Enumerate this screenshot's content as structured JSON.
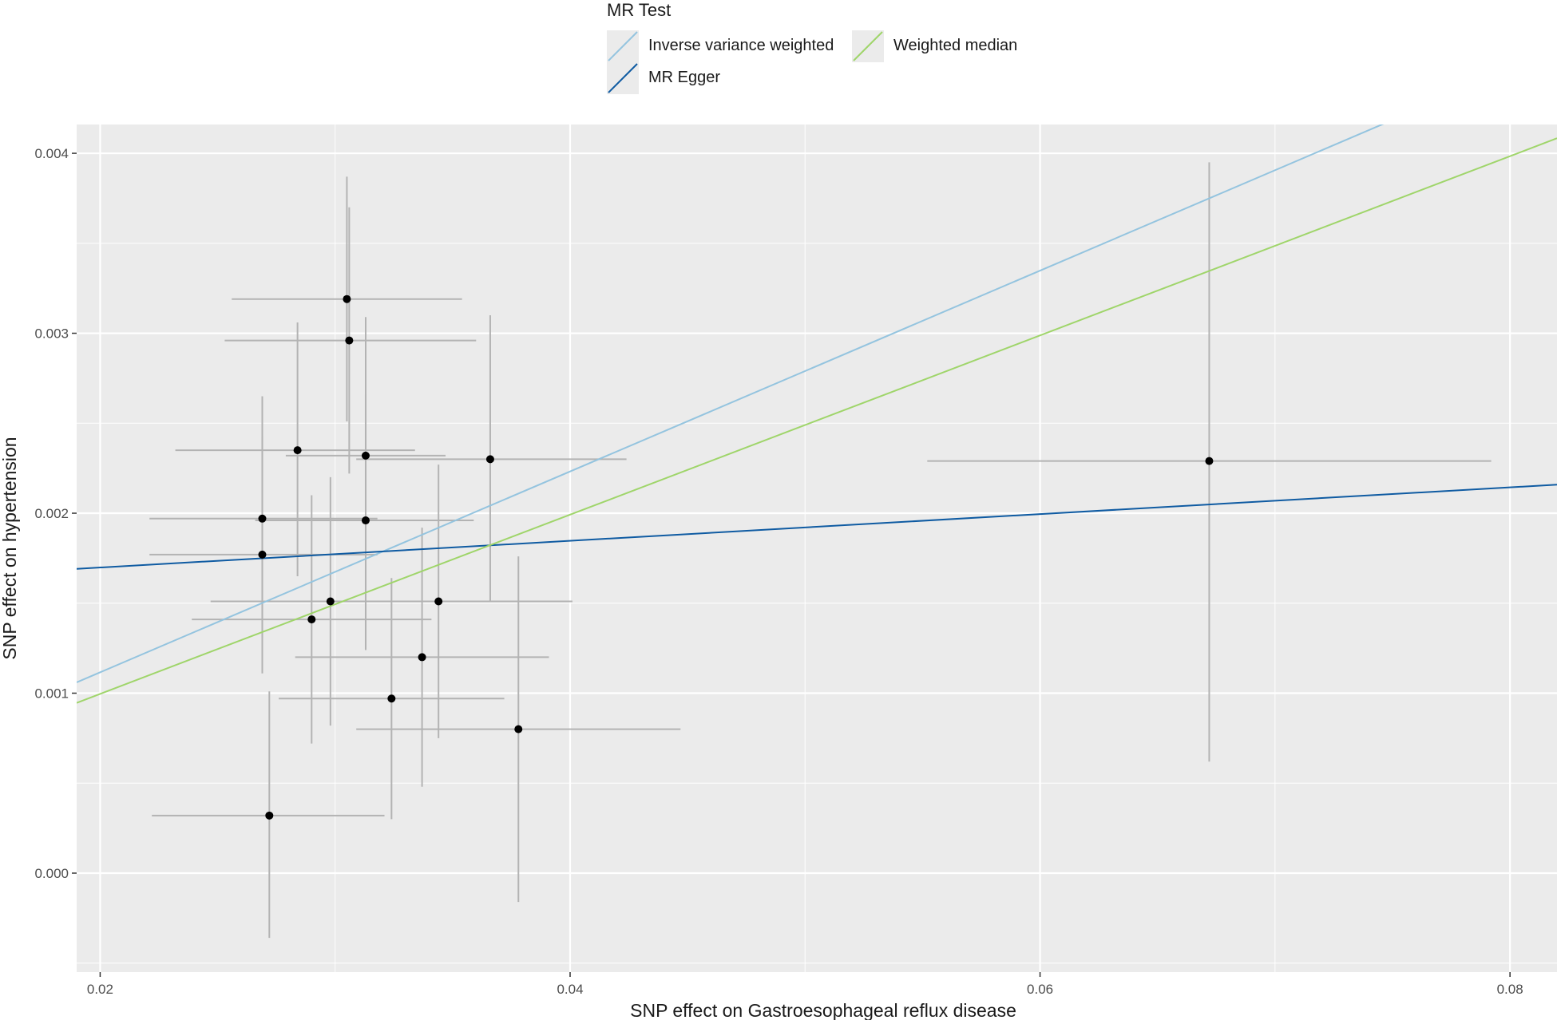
{
  "chart_data": {
    "type": "scatter",
    "xlabel": "SNP effect on Gastroesophageal reflux disease",
    "ylabel": "SNP effect on  hypertension",
    "xlim": [
      0.019,
      0.082
    ],
    "ylim": [
      -0.00055,
      0.00416
    ],
    "x_ticks": [
      0.02,
      0.04,
      0.06,
      0.08
    ],
    "x_tick_labels": [
      "0.02",
      "0.04",
      "0.06",
      "0.08"
    ],
    "y_ticks": [
      0.0,
      0.001,
      0.002,
      0.003,
      0.004
    ],
    "y_tick_labels": [
      "0.000",
      "0.001",
      "0.002",
      "0.003",
      "0.004"
    ],
    "grid": true,
    "legend_title": "MR Test",
    "legend_position": "top",
    "points": [
      {
        "x": 0.0305,
        "y": 0.00319,
        "x_lo": 0.0256,
        "x_hi": 0.0354,
        "y_lo": 0.00251,
        "y_hi": 0.00387
      },
      {
        "x": 0.0306,
        "y": 0.00296,
        "x_lo": 0.0253,
        "x_hi": 0.036,
        "y_lo": 0.00222,
        "y_hi": 0.0037
      },
      {
        "x": 0.0284,
        "y": 0.00235,
        "x_lo": 0.0232,
        "x_hi": 0.0334,
        "y_lo": 0.00165,
        "y_hi": 0.00306
      },
      {
        "x": 0.0313,
        "y": 0.00232,
        "x_lo": 0.0279,
        "x_hi": 0.0347,
        "y_lo": 0.00124,
        "y_hi": 0.00309
      },
      {
        "x": 0.0366,
        "y": 0.0023,
        "x_lo": 0.0309,
        "x_hi": 0.0424,
        "y_lo": 0.00151,
        "y_hi": 0.0031
      },
      {
        "x": 0.0269,
        "y": 0.00197,
        "x_lo": 0.0221,
        "x_hi": 0.0318,
        "y_lo": 0.00131,
        "y_hi": 0.00265
      },
      {
        "x": 0.0313,
        "y": 0.00196,
        "x_lo": 0.0266,
        "x_hi": 0.0359,
        "y_lo": 0.00124,
        "y_hi": 0.00266
      },
      {
        "x": 0.0269,
        "y": 0.00177,
        "x_lo": 0.0221,
        "x_hi": 0.0318,
        "y_lo": 0.00111,
        "y_hi": 0.00243
      },
      {
        "x": 0.0298,
        "y": 0.00151,
        "x_lo": 0.0247,
        "x_hi": 0.035,
        "y_lo": 0.00082,
        "y_hi": 0.0022
      },
      {
        "x": 0.0344,
        "y": 0.00151,
        "x_lo": 0.0287,
        "x_hi": 0.0401,
        "y_lo": 0.00075,
        "y_hi": 0.00227
      },
      {
        "x": 0.029,
        "y": 0.00141,
        "x_lo": 0.0239,
        "x_hi": 0.0341,
        "y_lo": 0.00072,
        "y_hi": 0.0021
      },
      {
        "x": 0.0337,
        "y": 0.0012,
        "x_lo": 0.0283,
        "x_hi": 0.0391,
        "y_lo": 0.00048,
        "y_hi": 0.00192
      },
      {
        "x": 0.0324,
        "y": 0.00097,
        "x_lo": 0.0276,
        "x_hi": 0.0372,
        "y_lo": 0.0003,
        "y_hi": 0.00164
      },
      {
        "x": 0.0378,
        "y": 0.0008,
        "x_lo": 0.0309,
        "x_hi": 0.0447,
        "y_lo": -0.00016,
        "y_hi": 0.00176
      },
      {
        "x": 0.0272,
        "y": 0.00032,
        "x_lo": 0.0222,
        "x_hi": 0.0321,
        "y_lo": -0.00036,
        "y_hi": 0.00101
      },
      {
        "x": 0.0672,
        "y": 0.00229,
        "x_lo": 0.0552,
        "x_hi": 0.0792,
        "y_lo": 0.00062,
        "y_hi": 0.00395
      }
    ],
    "lines": [
      {
        "name": "Inverse variance weighted",
        "color": "#94c4df",
        "intercept": 0.0,
        "slope": 0.0558
      },
      {
        "name": "MR Egger",
        "color": "#0f5ba2",
        "intercept": 0.00155,
        "slope": 0.00742
      },
      {
        "name": "Weighted median",
        "color": "#9fd56a",
        "intercept": 0.0,
        "slope": 0.0498
      }
    ],
    "legend_layout": [
      {
        "name": "Inverse variance weighted",
        "color": "#94c4df"
      },
      {
        "name": "Weighted median",
        "color": "#9fd56a"
      },
      {
        "name": "MR Egger",
        "color": "#0f5ba2"
      }
    ],
    "errorbar_color": "#b3b3b3",
    "point_color": "#000000",
    "panel_color": "#ebebeb",
    "grid_color": "#ffffff"
  }
}
